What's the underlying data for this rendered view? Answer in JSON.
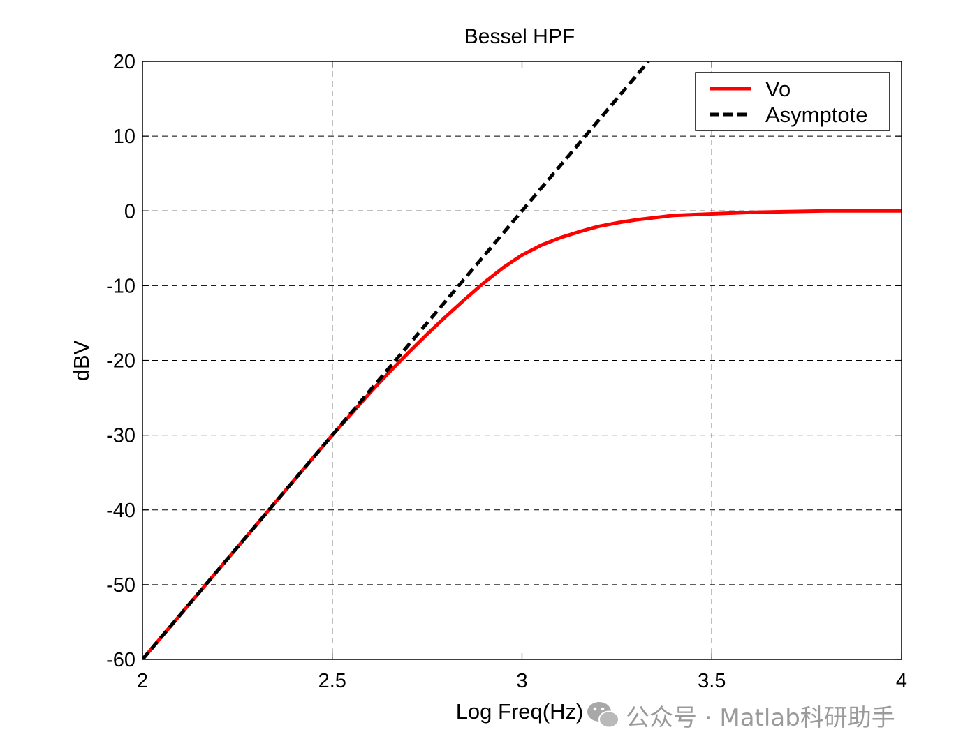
{
  "chart_data": {
    "type": "line",
    "title": "Bessel HPF",
    "xlabel": "Log Freq(Hz)",
    "ylabel": "dBV",
    "xlim": [
      2,
      4
    ],
    "ylim": [
      -60,
      20
    ],
    "xticks": [
      2,
      2.5,
      3,
      3.5,
      4
    ],
    "yticks": [
      -60,
      -50,
      -40,
      -30,
      -20,
      -10,
      0,
      10,
      20
    ],
    "xtick_labels": [
      "2",
      "2.5",
      "3",
      "3.5",
      "4"
    ],
    "ytick_labels": [
      "-60",
      "-50",
      "-40",
      "-30",
      "-20",
      "-10",
      "0",
      "10",
      "20"
    ],
    "grid": true,
    "legend_position": "top-right",
    "series": [
      {
        "name": "Vo",
        "color": "#ff0000",
        "style": "solid",
        "x": [
          2.0,
          2.1,
          2.2,
          2.3,
          2.4,
          2.5,
          2.6,
          2.65,
          2.7,
          2.75,
          2.8,
          2.85,
          2.9,
          2.95,
          3.0,
          3.05,
          3.1,
          3.15,
          3.2,
          3.25,
          3.3,
          3.35,
          3.4,
          3.45,
          3.5,
          3.6,
          3.7,
          3.8,
          4.0
        ],
        "y": [
          -60.0,
          -54.0,
          -48.0,
          -42.0,
          -36.0,
          -30.0,
          -24.3,
          -21.6,
          -19.0,
          -16.5,
          -14.1,
          -11.8,
          -9.6,
          -7.6,
          -5.9,
          -4.6,
          -3.6,
          -2.8,
          -2.1,
          -1.6,
          -1.2,
          -0.9,
          -0.6,
          -0.5,
          -0.4,
          -0.2,
          -0.1,
          0.0,
          0.0
        ]
      },
      {
        "name": "Asymptote",
        "color": "#000000",
        "style": "dashed",
        "x": [
          2.0,
          3.3333
        ],
        "y": [
          -60.0,
          20.0
        ]
      }
    ]
  },
  "watermark": {
    "text": "公众号 · Matlab科研助手",
    "icon": "wechat-icon"
  }
}
